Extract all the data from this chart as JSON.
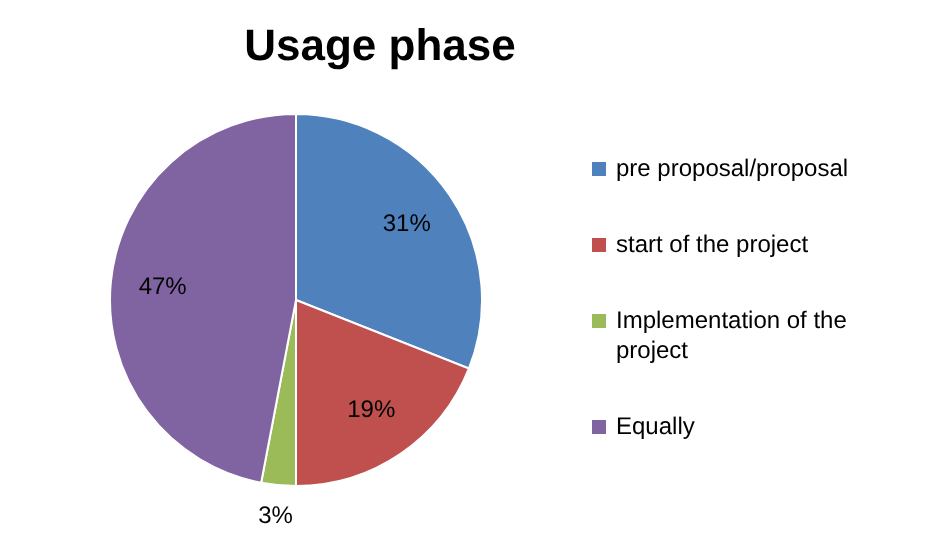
{
  "chart_data": {
    "type": "pie",
    "title": "Usage phase",
    "categories": [
      "pre proposal/proposal",
      "start of the project",
      "Implementation of the project",
      "Equally"
    ],
    "values": [
      31,
      19,
      3,
      47
    ],
    "colors": [
      "#4f81bd",
      "#c0504d",
      "#9bbb59",
      "#8064a2"
    ],
    "value_labels": [
      "31%",
      "19%",
      "3%",
      "47%"
    ],
    "legend": "right"
  }
}
